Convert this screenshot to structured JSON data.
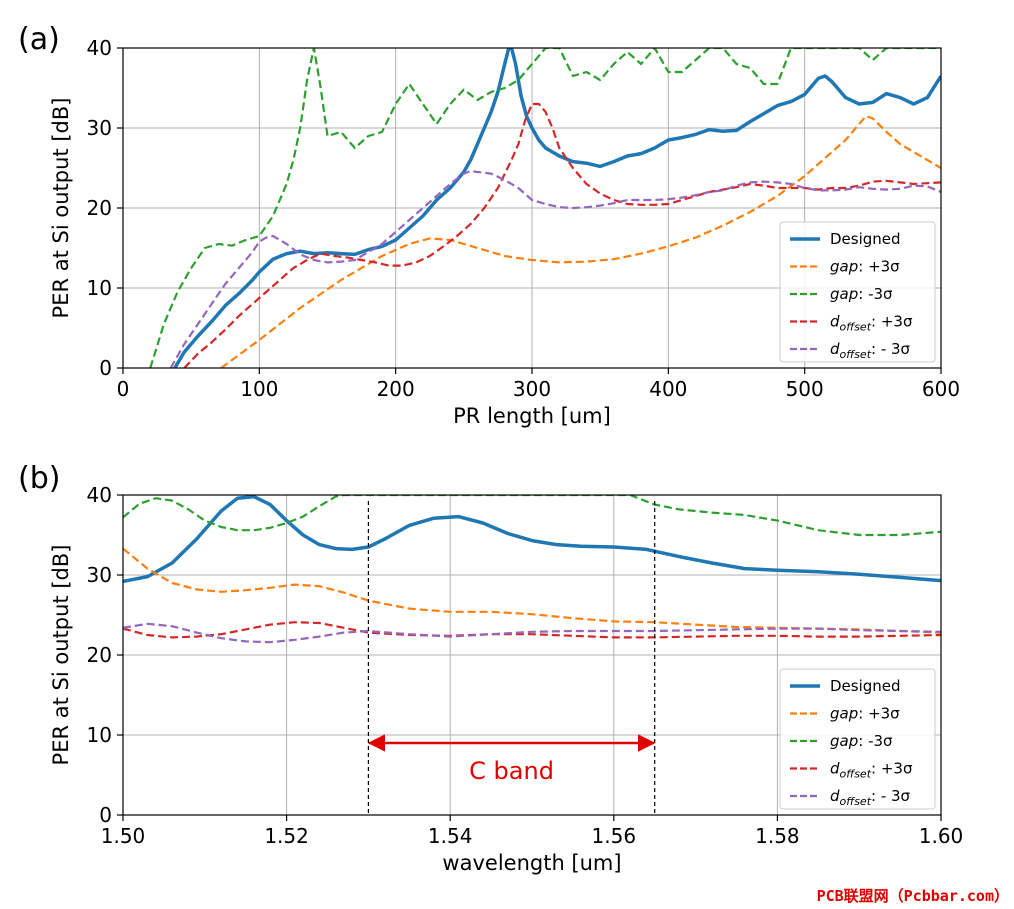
{
  "watermark": "PCB联盟网（Pcbbar.com）",
  "colors": {
    "designed": "#1f77b4",
    "gap_plus": "#ff7f0e",
    "gap_minus": "#2ca02c",
    "doff_plus": "#d62728",
    "doff_minus": "#9467bd",
    "cband": "#e00000"
  },
  "chart_data": [
    {
      "type": "line",
      "panel_label": "(a)",
      "xlabel": "PR length [um]",
      "ylabel": "PER at Si output [dB]",
      "xlim": [
        0,
        600
      ],
      "ylim": [
        0,
        40
      ],
      "xticks": [
        0,
        100,
        200,
        300,
        400,
        500,
        600
      ],
      "yticks": [
        0,
        10,
        20,
        30,
        40
      ],
      "grid": true,
      "legend_position": "lower-right",
      "series": [
        {
          "name": "Designed",
          "key": "designed",
          "style": "solid",
          "x": [
            38,
            45,
            55,
            65,
            75,
            85,
            95,
            100,
            110,
            120,
            130,
            140,
            150,
            160,
            170,
            180,
            190,
            200,
            210,
            220,
            230,
            240,
            250,
            255,
            260,
            265,
            270,
            275,
            280,
            283,
            285,
            288,
            292,
            296,
            300,
            305,
            310,
            320,
            330,
            340,
            350,
            360,
            370,
            380,
            390,
            400,
            410,
            420,
            430,
            440,
            450,
            460,
            470,
            480,
            490,
            500,
            510,
            515,
            520,
            530,
            540,
            550,
            560,
            570,
            580,
            590,
            600
          ],
          "y": [
            0,
            2,
            4,
            5.8,
            7.8,
            9.3,
            11,
            12,
            13.6,
            14.3,
            14.6,
            14.3,
            14.4,
            14.3,
            14.2,
            14.8,
            15.2,
            16,
            17.5,
            19,
            21,
            22.5,
            24.5,
            26,
            28,
            30,
            32,
            34.5,
            38,
            40,
            40,
            38,
            34,
            31.5,
            30,
            28.5,
            27.5,
            26.5,
            25.8,
            25.6,
            25.2,
            25.8,
            26.5,
            26.8,
            27.5,
            28.5,
            28.8,
            29.2,
            29.8,
            29.6,
            29.7,
            30.8,
            31.8,
            32.8,
            33.3,
            34.2,
            36.2,
            36.5,
            35.8,
            33.8,
            33,
            33.2,
            34.3,
            33.8,
            33,
            33.8,
            36.5
          ]
        },
        {
          "name": "gap: +3σ",
          "key": "gap_plus",
          "style": "dash",
          "x": [
            72,
            100,
            130,
            160,
            190,
            210,
            225,
            240,
            260,
            280,
            300,
            320,
            340,
            360,
            380,
            400,
            420,
            440,
            460,
            480,
            500,
            520,
            530,
            540,
            545,
            550,
            560,
            570,
            580,
            590,
            600
          ],
          "y": [
            0,
            3.5,
            7.5,
            11,
            14,
            15.5,
            16.2,
            16,
            15,
            14,
            13.5,
            13.2,
            13.3,
            13.6,
            14.3,
            15.2,
            16.3,
            17.8,
            19.5,
            21.5,
            24,
            27,
            28.5,
            30.5,
            31.5,
            31.2,
            29.5,
            28,
            27,
            26,
            25
          ]
        },
        {
          "name": "gap: -3σ",
          "key": "gap_minus",
          "style": "dash",
          "x": [
            20,
            30,
            40,
            50,
            60,
            70,
            80,
            90,
            100,
            110,
            120,
            125,
            130,
            135,
            140,
            145,
            150,
            160,
            170,
            180,
            190,
            200,
            210,
            220,
            230,
            240,
            250,
            260,
            270,
            280,
            290,
            300,
            310,
            320,
            330,
            340,
            350,
            360,
            370,
            380,
            390,
            400,
            410,
            420,
            430,
            440,
            450,
            460,
            470,
            480,
            490,
            500,
            510,
            520,
            530,
            540,
            550,
            560,
            570,
            580,
            590,
            600
          ],
          "y": [
            0,
            5.5,
            9.5,
            12.5,
            15,
            15.5,
            15.3,
            16,
            16.5,
            19,
            23,
            26,
            30,
            36,
            40,
            35,
            29,
            29.5,
            27.5,
            29,
            29.5,
            33,
            35.5,
            33,
            30.5,
            33,
            34.8,
            33.5,
            34.5,
            35,
            36,
            38,
            40,
            40,
            36.5,
            37,
            36,
            38,
            39.5,
            38,
            40,
            37,
            37,
            38.5,
            40,
            40,
            38,
            37.5,
            35.5,
            35.5,
            40,
            40,
            40,
            40,
            40,
            40,
            38.5,
            40,
            40,
            40,
            40,
            40
          ]
        },
        {
          "name": "d_offset: +3σ",
          "key": "doff_plus",
          "style": "dash",
          "x": [
            45,
            55,
            65,
            75,
            85,
            95,
            105,
            115,
            125,
            135,
            145,
            155,
            165,
            175,
            185,
            195,
            205,
            215,
            225,
            235,
            245,
            255,
            265,
            275,
            285,
            290,
            295,
            300,
            305,
            310,
            315,
            320,
            330,
            340,
            350,
            360,
            370,
            380,
            390,
            400,
            410,
            420,
            430,
            440,
            450,
            460,
            470,
            480,
            490,
            500,
            510,
            520,
            530,
            540,
            550,
            560,
            570,
            580,
            590,
            600
          ],
          "y": [
            0,
            1.8,
            3.2,
            4.8,
            6.5,
            8,
            9.5,
            11,
            12.5,
            13.5,
            14.3,
            14,
            13.8,
            13.5,
            13.2,
            12.8,
            12.8,
            13.2,
            14,
            15.2,
            16.5,
            18,
            20,
            22.5,
            26,
            28,
            31,
            33,
            33,
            32,
            30,
            27.5,
            25,
            23,
            21.8,
            21,
            20.5,
            20.4,
            20.4,
            20.5,
            21,
            21.5,
            22,
            22.3,
            22.6,
            23,
            22.8,
            22.5,
            22.5,
            22.5,
            22.3,
            22.5,
            22.5,
            22.8,
            23.3,
            23.4,
            23.2,
            23,
            23.1,
            23.2
          ]
        },
        {
          "name": "d_offset: - 3σ",
          "key": "doff_minus",
          "style": "dash",
          "x": [
            35,
            45,
            55,
            65,
            75,
            85,
            95,
            100,
            105,
            110,
            115,
            120,
            130,
            140,
            150,
            160,
            170,
            180,
            190,
            200,
            210,
            220,
            230,
            240,
            250,
            255,
            260,
            270,
            280,
            290,
            300,
            310,
            320,
            330,
            340,
            350,
            360,
            370,
            380,
            390,
            400,
            410,
            420,
            430,
            440,
            450,
            460,
            470,
            480,
            490,
            500,
            510,
            520,
            530,
            540,
            550,
            560,
            570,
            580,
            590,
            600
          ],
          "y": [
            0,
            3,
            5.5,
            8,
            10.5,
            12.5,
            14.5,
            15.8,
            16.3,
            16.5,
            16,
            15.5,
            14.2,
            13.5,
            13.2,
            13.3,
            13.5,
            14.5,
            15.5,
            17,
            18.5,
            20,
            21.5,
            23,
            24.3,
            24.6,
            24.5,
            24.3,
            23.5,
            22.5,
            21,
            20.5,
            20.1,
            20,
            20.1,
            20.3,
            20.6,
            21,
            21,
            21,
            21.1,
            21.3,
            21.6,
            22,
            22.2,
            22.8,
            23.2,
            23.3,
            23.2,
            23,
            22.5,
            22.2,
            22.2,
            22.3,
            22.6,
            22.4,
            22.3,
            22.4,
            22.8,
            22.7,
            22
          ]
        }
      ]
    },
    {
      "type": "line",
      "panel_label": "(b)",
      "xlabel": "wavelength [um]",
      "ylabel": "PER at Si output [dB]",
      "xlim": [
        1.5,
        1.6
      ],
      "ylim": [
        0,
        40
      ],
      "xticks": [
        1.5,
        1.52,
        1.54,
        1.56,
        1.58,
        1.6
      ],
      "xtick_labels": [
        "1.50",
        "1.52",
        "1.54",
        "1.56",
        "1.58",
        "1.60"
      ],
      "yticks": [
        0,
        10,
        20,
        30,
        40
      ],
      "grid": true,
      "legend_position": "lower-right",
      "annotations": [
        {
          "type": "vline",
          "x": 1.53
        },
        {
          "type": "vline",
          "x": 1.565
        },
        {
          "type": "double-arrow",
          "x1": 1.53,
          "x2": 1.565,
          "y": 9
        },
        {
          "type": "text",
          "text": "C band",
          "x": 1.5475,
          "y": 4.5
        }
      ],
      "series": [
        {
          "name": "Designed",
          "key": "designed",
          "style": "solid",
          "x": [
            1.5,
            1.503,
            1.506,
            1.509,
            1.512,
            1.514,
            1.516,
            1.518,
            1.52,
            1.522,
            1.524,
            1.526,
            1.528,
            1.53,
            1.532,
            1.535,
            1.538,
            1.541,
            1.544,
            1.547,
            1.55,
            1.553,
            1.556,
            1.56,
            1.564,
            1.568,
            1.572,
            1.576,
            1.58,
            1.585,
            1.59,
            1.595,
            1.6
          ],
          "y": [
            29.2,
            29.8,
            31.5,
            34.5,
            38,
            39.6,
            39.8,
            38.8,
            36.8,
            35,
            33.8,
            33.3,
            33.2,
            33.5,
            34.5,
            36.2,
            37.1,
            37.3,
            36.5,
            35.2,
            34.3,
            33.8,
            33.6,
            33.5,
            33.2,
            32.3,
            31.5,
            30.8,
            30.6,
            30.4,
            30.1,
            29.7,
            29.3
          ]
        },
        {
          "name": "gap: +3σ",
          "key": "gap_plus",
          "style": "dash",
          "x": [
            1.5,
            1.503,
            1.506,
            1.509,
            1.512,
            1.515,
            1.518,
            1.521,
            1.524,
            1.527,
            1.53,
            1.535,
            1.54,
            1.545,
            1.55,
            1.555,
            1.56,
            1.565,
            1.57,
            1.575,
            1.58,
            1.585,
            1.59,
            1.595,
            1.6
          ],
          "y": [
            33.3,
            30.8,
            29,
            28.2,
            27.9,
            28.1,
            28.4,
            28.8,
            28.6,
            27.8,
            26.8,
            25.8,
            25.4,
            25.4,
            25.1,
            24.6,
            24.2,
            24.1,
            23.8,
            23.5,
            23.4,
            23.3,
            23.2,
            23,
            22.8
          ]
        },
        {
          "name": "gap: -3σ",
          "key": "gap_minus",
          "style": "dash",
          "x": [
            1.5,
            1.502,
            1.504,
            1.506,
            1.508,
            1.51,
            1.512,
            1.514,
            1.516,
            1.518,
            1.52,
            1.522,
            1.524,
            1.526,
            1.527,
            1.562,
            1.563,
            1.565,
            1.568,
            1.572,
            1.576,
            1.58,
            1.585,
            1.59,
            1.595,
            1.6
          ],
          "y": [
            37.2,
            38.9,
            39.6,
            39.3,
            38.2,
            36.8,
            36,
            35.6,
            35.6,
            35.9,
            36.5,
            37.3,
            38.6,
            39.8,
            40,
            40,
            39.6,
            38.8,
            38.2,
            37.8,
            37.5,
            36.8,
            35.6,
            35,
            35,
            35.4
          ]
        },
        {
          "name": "d_offset: +3σ",
          "key": "doff_plus",
          "style": "dash",
          "x": [
            1.5,
            1.503,
            1.506,
            1.509,
            1.512,
            1.515,
            1.518,
            1.521,
            1.524,
            1.527,
            1.53,
            1.535,
            1.54,
            1.545,
            1.55,
            1.555,
            1.56,
            1.565,
            1.57,
            1.575,
            1.58,
            1.585,
            1.59,
            1.595,
            1.6
          ],
          "y": [
            23.3,
            22.5,
            22.2,
            22.3,
            22.6,
            23.2,
            23.8,
            24.1,
            24,
            23.4,
            22.8,
            22.5,
            22.4,
            22.6,
            22.6,
            22.4,
            22.2,
            22.2,
            22.3,
            22.4,
            22.4,
            22.3,
            22.3,
            22.4,
            22.5
          ]
        },
        {
          "name": "d_offset: - 3σ",
          "key": "doff_minus",
          "style": "dash",
          "x": [
            1.5,
            1.503,
            1.506,
            1.509,
            1.512,
            1.515,
            1.518,
            1.521,
            1.524,
            1.527,
            1.53,
            1.535,
            1.54,
            1.545,
            1.55,
            1.555,
            1.56,
            1.565,
            1.57,
            1.575,
            1.58,
            1.585,
            1.59,
            1.595,
            1.6
          ],
          "y": [
            23.4,
            23.9,
            23.6,
            22.8,
            22.1,
            21.7,
            21.6,
            21.9,
            22.3,
            22.8,
            23,
            22.6,
            22.3,
            22.6,
            22.9,
            23,
            23,
            23,
            23.1,
            23.2,
            23.3,
            23.3,
            23.1,
            23,
            22.9
          ]
        }
      ]
    }
  ]
}
